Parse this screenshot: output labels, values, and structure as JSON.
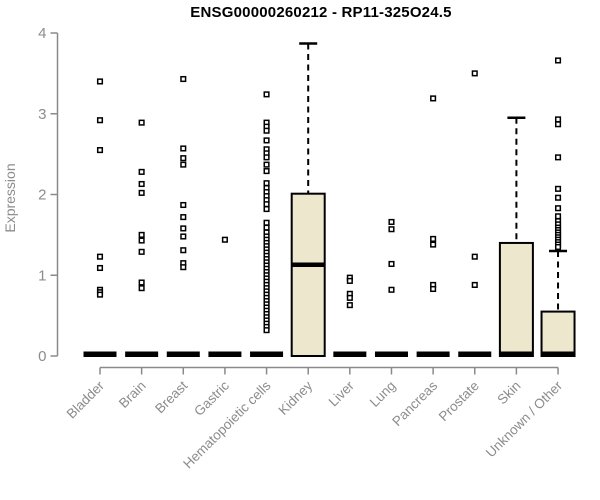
{
  "chart_data": {
    "type": "boxplot",
    "title": "ENSG00000260212 - RP11-325O24.5",
    "ylabel": "Expression",
    "xlabel": "",
    "ylim": [
      0,
      4
    ],
    "yticks": [
      0,
      1,
      2,
      3,
      4
    ],
    "grid": false,
    "legend": "none",
    "categories": [
      "Bladder",
      "Brain",
      "Breast",
      "Gastric",
      "Hematopoietic cells",
      "Kidney",
      "Liver",
      "Lung",
      "Pancreas",
      "Prostate",
      "Skin",
      "Unknown / Other"
    ],
    "series": [
      {
        "category": "Bladder",
        "box": {
          "q1": 0,
          "median": 0,
          "q3": 0,
          "whisker_low": 0,
          "whisker_high": 0
        },
        "points": [
          3.4,
          2.92,
          2.55,
          1.23,
          1.09,
          0.82,
          0.79,
          0.76
        ]
      },
      {
        "category": "Brain",
        "box": {
          "q1": 0,
          "median": 0,
          "q3": 0,
          "whisker_low": 0,
          "whisker_high": 0
        },
        "points": [
          2.89,
          2.28,
          2.13,
          2.02,
          1.5,
          1.43,
          1.29,
          0.91,
          0.84
        ]
      },
      {
        "category": "Breast",
        "box": {
          "q1": 0,
          "median": 0,
          "q3": 0,
          "whisker_low": 0,
          "whisker_high": 0
        },
        "points": [
          3.43,
          2.57,
          2.45,
          2.37,
          1.87,
          1.72,
          1.58,
          1.48,
          1.31,
          1.15,
          1.1
        ]
      },
      {
        "category": "Gastric",
        "box": {
          "q1": 0,
          "median": 0,
          "q3": 0,
          "whisker_low": 0,
          "whisker_high": 0
        },
        "points": [
          1.44
        ]
      },
      {
        "category": "Hematopoietic cells",
        "box": {
          "q1": 0,
          "median": 0,
          "q3": 0,
          "whisker_low": 0,
          "whisker_high": 0
        },
        "points": [
          3.24,
          2.89,
          2.84,
          2.79,
          2.67,
          2.56,
          2.51,
          2.46,
          2.37,
          2.29,
          2.14,
          2.08,
          2.03,
          1.98,
          1.93,
          1.88,
          1.82,
          1.65,
          1.59,
          1.53,
          1.48,
          1.44,
          1.4,
          1.36,
          1.32,
          1.28,
          1.24,
          1.2,
          1.16,
          1.12,
          1.08,
          1.04,
          1.0,
          0.96,
          0.92,
          0.88,
          0.84,
          0.8,
          0.76,
          0.72,
          0.68,
          0.64,
          0.6,
          0.56,
          0.52,
          0.48,
          0.44,
          0.4,
          0.36,
          0.32
        ]
      },
      {
        "category": "Kidney",
        "box": {
          "q1": 0,
          "median": 1.13,
          "q3": 2.01,
          "whisker_low": 0,
          "whisker_high": 3.87
        },
        "points": []
      },
      {
        "category": "Liver",
        "box": {
          "q1": 0,
          "median": 0,
          "q3": 0,
          "whisker_low": 0,
          "whisker_high": 0
        },
        "points": [
          0.97,
          0.93,
          0.77,
          0.72,
          0.63
        ]
      },
      {
        "category": "Lung",
        "box": {
          "q1": 0,
          "median": 0,
          "q3": 0,
          "whisker_low": 0,
          "whisker_high": 0
        },
        "points": [
          1.66,
          1.57,
          1.14,
          0.82
        ]
      },
      {
        "category": "Pancreas",
        "box": {
          "q1": 0,
          "median": 0,
          "q3": 0,
          "whisker_low": 0,
          "whisker_high": 0
        },
        "points": [
          3.19,
          1.45,
          1.38,
          0.88,
          0.83
        ]
      },
      {
        "category": "Prostate",
        "box": {
          "q1": 0,
          "median": 0,
          "q3": 0,
          "whisker_low": 0,
          "whisker_high": 0
        },
        "points": [
          3.5,
          1.23,
          0.88
        ]
      },
      {
        "category": "Skin",
        "box": {
          "q1": 0,
          "median": 0.02,
          "q3": 1.4,
          "whisker_low": 0,
          "whisker_high": 2.95
        },
        "points": []
      },
      {
        "category": "Unknown / Other",
        "box": {
          "q1": 0,
          "median": 0.02,
          "q3": 0.55,
          "whisker_low": 0,
          "whisker_high": 1.3
        },
        "points": [
          3.66,
          2.93,
          2.87,
          2.46,
          2.07,
          1.96,
          1.83,
          1.73,
          1.67,
          1.63,
          1.59,
          1.56,
          1.53,
          1.5,
          1.47,
          1.44,
          1.41,
          1.38,
          1.35
        ]
      }
    ],
    "colors": {
      "box_fill": "#EDE7CE",
      "box_stroke": "#000000",
      "median_color": "#000000",
      "point_stroke": "#000000",
      "point_fill": "#FFFFFF",
      "axis_color": "#8A8A8A",
      "tick_label_color": "#8C8C8C",
      "title_color": "#000000"
    }
  }
}
